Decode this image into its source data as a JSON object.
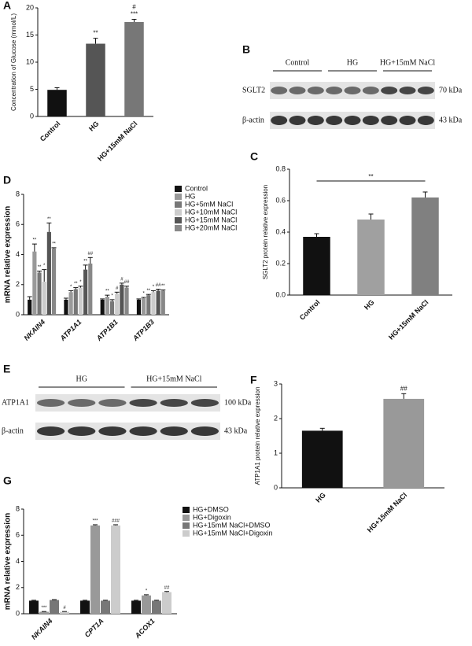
{
  "chart_data": [
    {
      "panel": "A",
      "type": "bar",
      "y_label": "Concentration of Glucose (mmol/L)",
      "categories": [
        "Control",
        "HG",
        "HG+15mM NaCl"
      ],
      "values": [
        4.9,
        13.4,
        17.4
      ],
      "errors": [
        0.4,
        1.0,
        0.5
      ],
      "colors": [
        "#111111",
        "#555555",
        "#777777"
      ],
      "annotations": [
        [],
        [
          "**"
        ],
        [
          "#",
          "***"
        ]
      ],
      "ylim": [
        0,
        20
      ],
      "yticks": [
        0,
        5,
        10,
        15,
        20
      ]
    },
    {
      "panel": "C",
      "type": "bar",
      "y_label": "SGLT2 protein relative expression",
      "categories": [
        "Control",
        "HG",
        "HG+15mM NaCl"
      ],
      "values": [
        0.37,
        0.48,
        0.62
      ],
      "errors": [
        0.02,
        0.035,
        0.035
      ],
      "colors": [
        "#111111",
        "#a0a0a0",
        "#808080"
      ],
      "significance": "**",
      "ylim": [
        0,
        0.8
      ],
      "yticks": [
        {
          "value": 0,
          "label": "0.0"
        },
        0.2,
        0.4,
        0.6,
        0.8
      ]
    },
    {
      "panel": "D",
      "type": "grouped-bar",
      "y_label": "mRNA relative expression",
      "categories": [
        "NKAIN4",
        "ATP1A1",
        "ATP1B1",
        "ATP1B3"
      ],
      "series": [
        {
          "name": "Control",
          "color": "#111111",
          "values": [
            1.0,
            1.0,
            1.0,
            1.0
          ],
          "errors": [
            0.2,
            0.1,
            0.05,
            0.05
          ],
          "annotations": [
            null,
            null,
            null,
            null
          ]
        },
        {
          "name": "HG",
          "color": "#999999",
          "values": [
            4.2,
            1.5,
            1.2,
            1.1
          ],
          "errors": [
            0.5,
            0.1,
            0.1,
            0.05
          ],
          "annotations": [
            "**",
            "*",
            "**",
            "*"
          ]
        },
        {
          "name": "HG+5mM NaCl",
          "color": "#777777",
          "values": [
            2.8,
            1.7,
            0.9,
            1.3
          ],
          "errors": [
            0.1,
            0.1,
            0.1,
            0.05
          ],
          "annotations": [
            "**",
            "**",
            "*",
            "**"
          ]
        },
        {
          "name": "HG+10mM NaCl",
          "color": "#cccccc",
          "values": [
            2.2,
            1.8,
            1.4,
            1.5
          ],
          "errors": [
            0.8,
            0.1,
            0.1,
            0.1
          ],
          "annotations": [
            "*",
            "*",
            "#",
            "*"
          ]
        },
        {
          "name": "HG+15mM NaCl",
          "color": "#555555",
          "values": [
            5.5,
            3.0,
            2.0,
            1.6
          ],
          "errors": [
            0.6,
            0.3,
            0.1,
            0.1
          ],
          "annotations": [
            "**",
            "**",
            "#",
            "##"
          ]
        },
        {
          "name": "HG+20mM NaCl",
          "color": "#888888",
          "values": [
            4.4,
            3.4,
            1.8,
            1.6
          ],
          "errors": [
            0.05,
            0.4,
            0.1,
            0.05
          ],
          "annotations": [
            "**",
            "##",
            "##",
            "**"
          ]
        }
      ],
      "ylim": [
        0,
        8
      ],
      "yticks": [
        0,
        2,
        4,
        6,
        8
      ]
    },
    {
      "panel": "F",
      "type": "bar",
      "y_label": "ATP1A1 protein relative expression",
      "categories": [
        "HG",
        "HG+15mM NaCl"
      ],
      "values": [
        1.65,
        2.57
      ],
      "errors": [
        0.07,
        0.15
      ],
      "colors": [
        "#111111",
        "#999999"
      ],
      "annotations": [
        [],
        [
          "##"
        ]
      ],
      "ylim": [
        0,
        3
      ],
      "yticks": [
        0,
        1,
        2,
        3
      ]
    },
    {
      "panel": "G",
      "type": "grouped-bar",
      "y_label": "mRNA relative expression",
      "categories": [
        "NKAIN4",
        "CPT1A",
        "ACOX1"
      ],
      "series": [
        {
          "name": "HG+DMSO",
          "color": "#111111",
          "values": [
            1.0,
            1.0,
            1.0
          ],
          "errors": [
            0.03,
            0.03,
            0.03
          ],
          "annotations": [
            null,
            null,
            null
          ]
        },
        {
          "name": "HG+Digoxin",
          "color": "#999999",
          "values": [
            0.15,
            6.75,
            1.4
          ],
          "errors": [
            0.02,
            0.05,
            0.05
          ],
          "annotations": [
            "***",
            "***",
            "*"
          ]
        },
        {
          "name": "HG+15mM NaCl+DMSO",
          "color": "#777777",
          "values": [
            1.05,
            1.0,
            1.0
          ],
          "errors": [
            0.03,
            0.03,
            0.03
          ],
          "annotations": [
            null,
            null,
            null
          ]
        },
        {
          "name": "HG+15mM NaCl+Digoxin",
          "color": "#cccccc",
          "values": [
            0.15,
            6.75,
            1.65
          ],
          "errors": [
            0.02,
            0.05,
            0.05
          ],
          "annotations": [
            "#",
            "###",
            "##"
          ]
        }
      ],
      "ylim": [
        0,
        8
      ],
      "yticks": [
        0,
        2,
        4,
        6,
        8
      ]
    }
  ],
  "blots": [
    {
      "panel": "B",
      "groups": [
        "Control",
        "HG",
        "HG+15mM NaCl"
      ],
      "rows": [
        {
          "label": "SGLT2",
          "size": "70 kDa"
        },
        {
          "label": "β-actin",
          "size": "43 kDa"
        }
      ]
    },
    {
      "panel": "E",
      "groups": [
        "HG",
        "HG+15mM NaCl"
      ],
      "rows": [
        {
          "label": "ATP1A1",
          "size": "100 kDa"
        },
        {
          "label": "β-actin",
          "size": "43 kDa"
        }
      ]
    }
  ]
}
